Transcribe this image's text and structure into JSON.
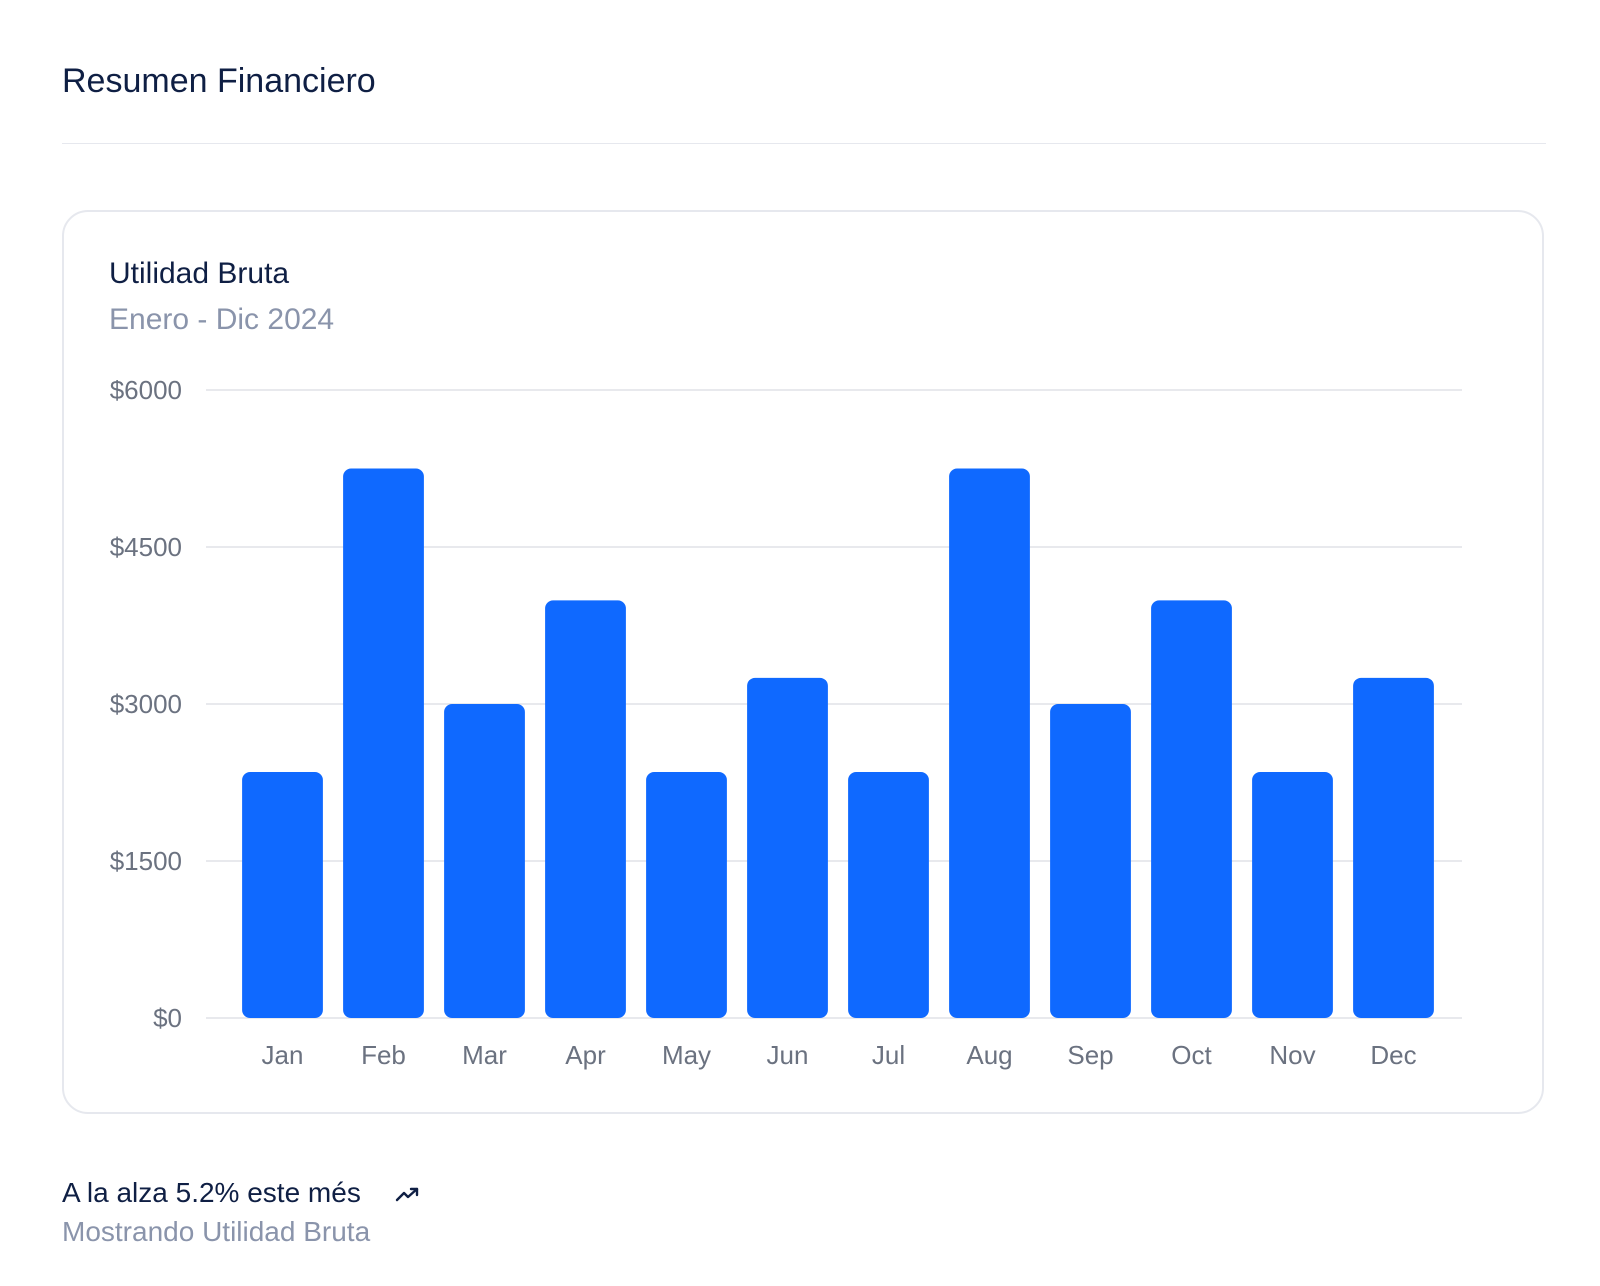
{
  "header": {
    "title": "Resumen Financiero"
  },
  "card": {
    "title": "Utilidad Bruta",
    "subtitle": "Enero - Dic 2024"
  },
  "footer": {
    "trend_text": "A la alza 5.2% este més",
    "trend_icon": "trending-up-icon",
    "note": "Mostrando Utilidad Bruta"
  },
  "colors": {
    "bar": "#0f69ff",
    "grid": "#e8e9ed",
    "text_dark": "#0f1f44",
    "text_muted": "#8a94ab"
  },
  "chart_data": {
    "type": "bar",
    "title": "Utilidad Bruta",
    "subtitle": "Enero - Dic 2024",
    "categories": [
      "Jan",
      "Feb",
      "Mar",
      "Apr",
      "May",
      "Jun",
      "Jul",
      "Aug",
      "Sep",
      "Oct",
      "Nov",
      "Dec"
    ],
    "values": [
      2350,
      5250,
      3000,
      3990,
      2350,
      3250,
      2350,
      5250,
      3000,
      3990,
      2350,
      3250
    ],
    "ylim": [
      0,
      6000
    ],
    "yticks": [
      0,
      1500,
      3000,
      4500,
      6000
    ],
    "ytick_labels": [
      "$0",
      "$1500",
      "$3000",
      "$4500",
      "$6000"
    ],
    "xlabel": "",
    "ylabel": "",
    "grid": true,
    "legend": "none"
  }
}
